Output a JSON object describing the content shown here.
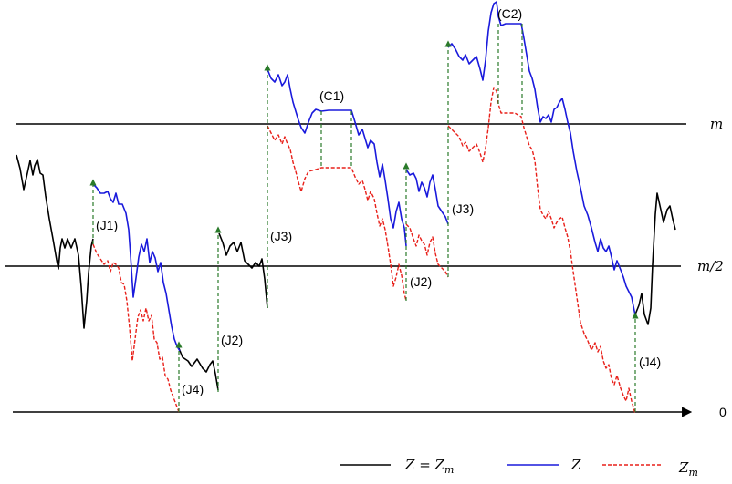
{
  "levels": {
    "m": "m",
    "m_half": "m/2",
    "zero": "0"
  },
  "annotations": {
    "c1": "(C1)",
    "c2": "(C2)",
    "j1": "(J1)",
    "j2_a": "(J2)",
    "j2_b": "(J2)",
    "j3_a": "(J3)",
    "j3_b": "(J3)",
    "j4_a": "(J4)",
    "j4_b": "(J4)"
  },
  "legend": {
    "black_main": "Z = Z",
    "black_sub": "m",
    "blue_label": "Z",
    "red_main": "Z",
    "red_sub": "m"
  },
  "colors": {
    "black": "#000000",
    "blue": "#1a1adc",
    "red": "#e8201a",
    "green": "#2a7a2a"
  }
}
